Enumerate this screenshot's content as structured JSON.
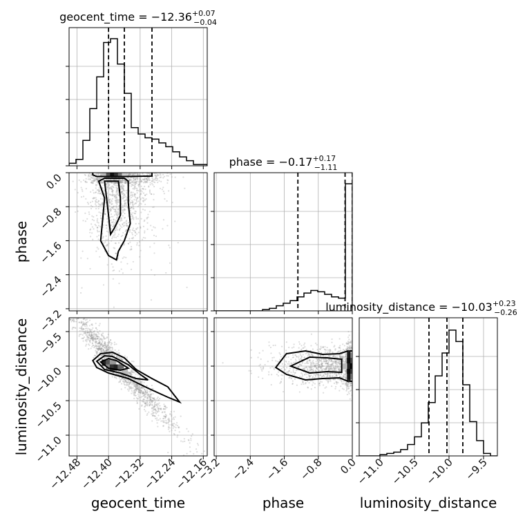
{
  "chart_data": {
    "type": "corner",
    "parameters": [
      "geocent_time",
      "phase",
      "luminosity_distance"
    ],
    "titles": [
      {
        "name": "geocent_time",
        "median": "−12.36",
        "plus": "+0.07",
        "minus": "−0.04"
      },
      {
        "name": "phase",
        "median": "−0.17",
        "plus": "+0.17",
        "minus": "−1.11"
      },
      {
        "name": "luminosity_distance",
        "median": "−10.03",
        "plus": "+0.23",
        "minus": "−0.26"
      }
    ],
    "axes": {
      "geocent_time": {
        "range": [
          -12.5,
          -12.15
        ],
        "ticks": [
          -12.48,
          -12.4,
          -12.32,
          -12.24,
          -12.16
        ],
        "tick_labels": [
          "−12.48",
          "−12.40",
          "−12.32",
          "−12.24",
          "−12.16"
        ]
      },
      "phase": {
        "range": [
          -3.25,
          0.0
        ],
        "ticks": [
          -3.2,
          -2.4,
          -1.6,
          -0.8,
          0.0
        ],
        "tick_labels": [
          "−3.2",
          "−2.4",
          "−1.6",
          "−0.8",
          "0.0"
        ]
      },
      "luminosity_distance": {
        "range": [
          -11.3,
          -9.3
        ],
        "ticks": [
          -11.0,
          -10.5,
          -10.0,
          -9.5
        ],
        "tick_labels": [
          "−11.0",
          "−10.5",
          "−10.0",
          "−9.5"
        ]
      }
    },
    "quantile_lines": {
      "geocent_time": [
        -12.4,
        -12.36,
        -12.29
      ],
      "phase": [
        -1.28,
        -0.17,
        0.0
      ],
      "luminosity_distance": [
        -10.29,
        -10.03,
        -9.8
      ]
    },
    "histograms": {
      "geocent_time": {
        "edges_start": -12.5,
        "bin_width": 0.0175,
        "counts": [
          0.02,
          0.05,
          0.2,
          0.45,
          0.7,
          0.97,
          1.0,
          0.8,
          0.57,
          0.3,
          0.25,
          0.22,
          0.21,
          0.18,
          0.15,
          0.11,
          0.07,
          0.04,
          0.01,
          0.01
        ]
      },
      "phase": {
        "edges_start": -3.25,
        "bin_width": 0.1625,
        "counts": [
          0.0,
          0.0,
          0.0,
          0.0,
          0.0,
          0.0,
          0.0,
          0.01,
          0.02,
          0.04,
          0.06,
          0.08,
          0.11,
          0.14,
          0.16,
          0.15,
          0.13,
          0.11,
          0.1,
          1.0
        ]
      },
      "luminosity_distance": {
        "edges_start": -11.3,
        "bin_width": 0.1,
        "counts": [
          0.0,
          0.0,
          0.0,
          0.01,
          0.02,
          0.03,
          0.05,
          0.09,
          0.15,
          0.26,
          0.42,
          0.63,
          0.81,
          0.99,
          0.9,
          0.56,
          0.27,
          0.12,
          0.02,
          0.0
        ]
      }
    },
    "grid": true
  }
}
